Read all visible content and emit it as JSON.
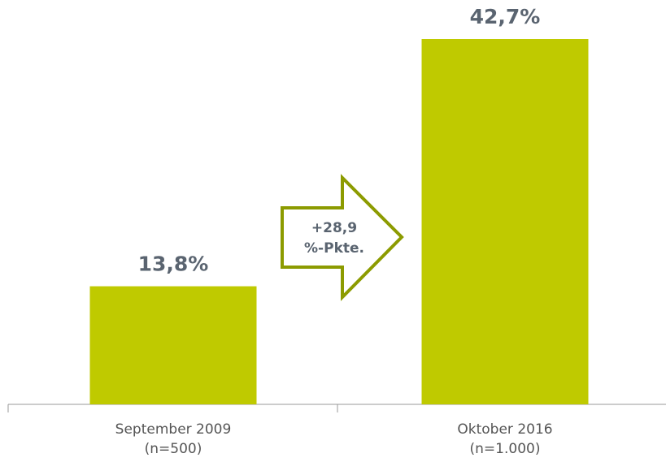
{
  "chart_data": {
    "type": "bar",
    "categories": [
      "September 2009",
      "Oktober 2016"
    ],
    "category_notes": [
      "(n=500)",
      "(n=1.000)"
    ],
    "values": [
      13.8,
      42.7
    ],
    "value_labels": [
      "13,8%",
      "42,7%"
    ],
    "color": "#bfca00",
    "annotation_lines": [
      "+28,9",
      "%-Pkte."
    ]
  }
}
